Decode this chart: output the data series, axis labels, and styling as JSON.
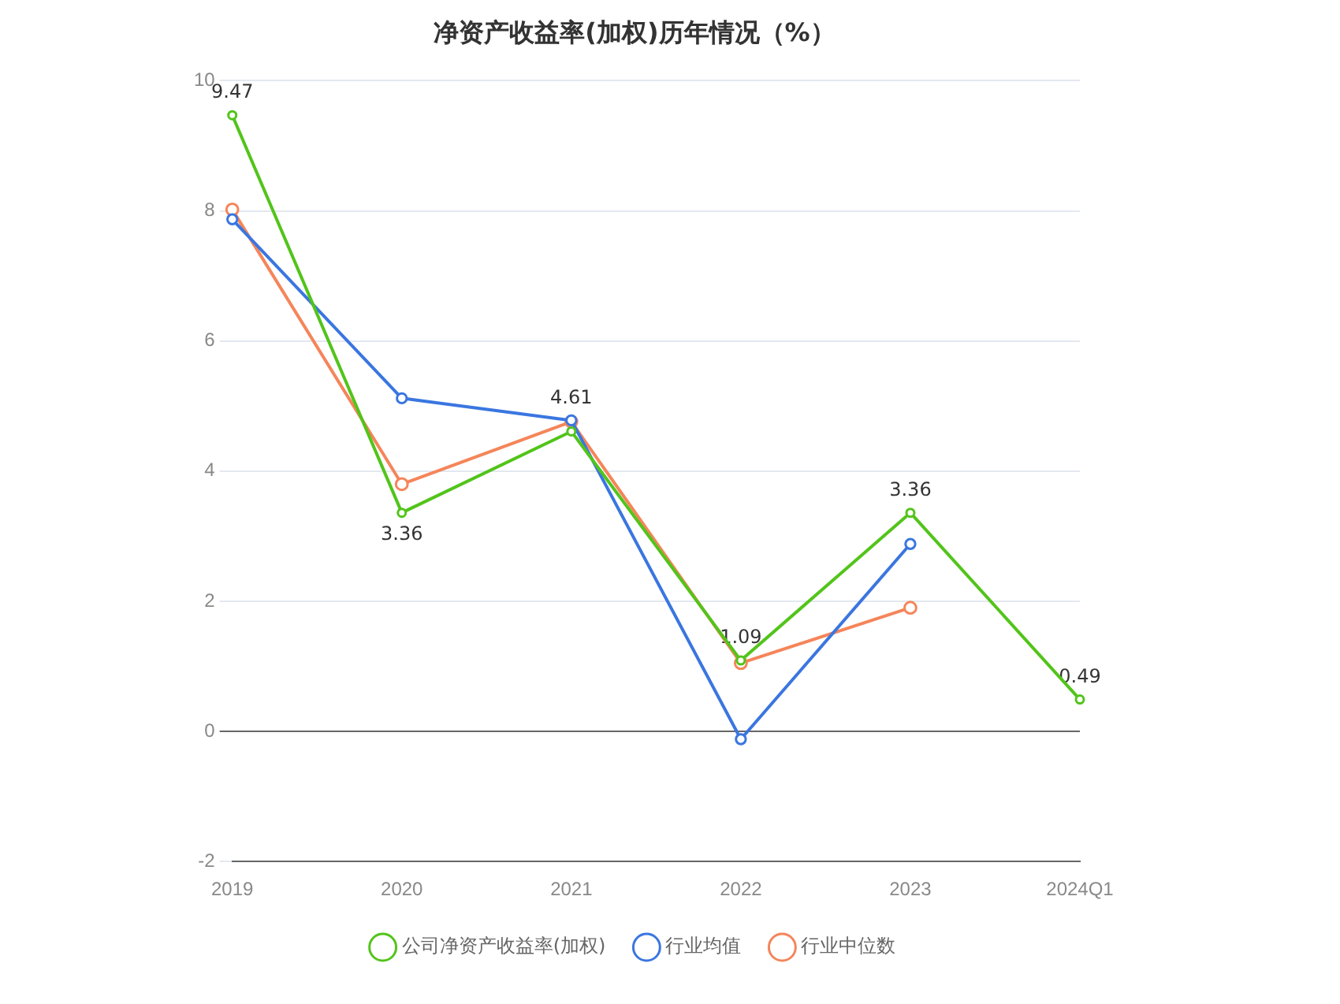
{
  "chart_data": {
    "type": "line",
    "title": "净资产收益率(加权)历年情况（%）",
    "categories": [
      "2019",
      "2020",
      "2021",
      "2022",
      "2023",
      "2024Q1"
    ],
    "series": [
      {
        "name": "公司净资产收益率(加权)",
        "color": "#52c41a",
        "values": [
          9.47,
          3.36,
          4.61,
          1.09,
          3.36,
          0.49
        ],
        "value_labels": [
          "9.47",
          "3.36",
          "4.61",
          "1.09",
          "3.36",
          "0.49"
        ]
      },
      {
        "name": "行业均值",
        "color": "#3a76e0",
        "values": [
          7.87,
          5.12,
          4.78,
          -0.12,
          2.88,
          null
        ]
      },
      {
        "name": "行业中位数",
        "color": "#f5855a",
        "values": [
          8.02,
          3.8,
          4.76,
          1.05,
          1.9,
          null
        ]
      }
    ],
    "ylim": [
      -2,
      10
    ],
    "yticks": [
      -2,
      0,
      2,
      4,
      6,
      8,
      10
    ],
    "grid": "y",
    "legend": "bottom",
    "marker": "circle",
    "line_style": "solid"
  }
}
